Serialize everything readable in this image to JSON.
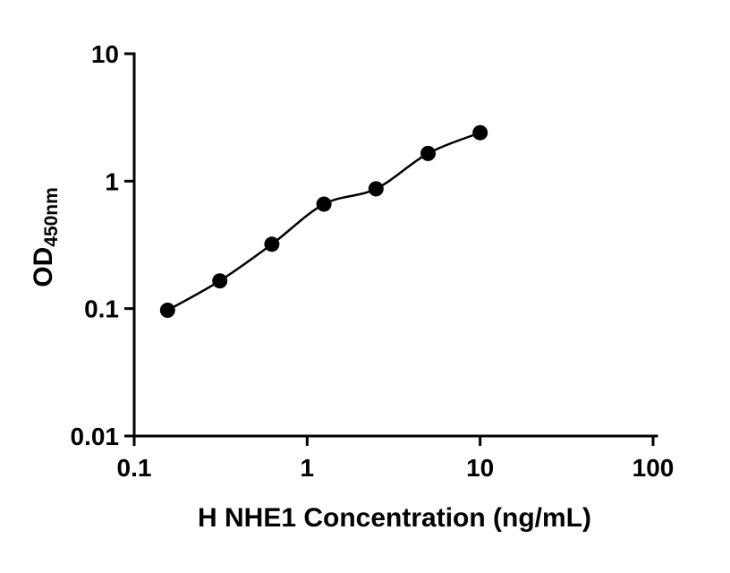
{
  "chart_data": {
    "type": "scatter",
    "title": "",
    "xlabel": "H NHE1 Concentration (ng/mL)",
    "ylabel_main": "OD",
    "ylabel_sub": "450nm",
    "x_scale": "log",
    "y_scale": "log",
    "xlim": [
      0.1,
      100
    ],
    "ylim": [
      0.01,
      10
    ],
    "x": [
      0.156,
      0.3125,
      0.625,
      1.25,
      2.5,
      5,
      10
    ],
    "y": [
      0.097,
      0.165,
      0.32,
      0.66,
      0.87,
      1.65,
      2.4
    ],
    "x_ticks": [
      {
        "value": 0.1,
        "label": "0.1"
      },
      {
        "value": 1,
        "label": "1"
      },
      {
        "value": 10,
        "label": "10"
      },
      {
        "value": 100,
        "label": "100"
      }
    ],
    "y_ticks": [
      {
        "value": 0.01,
        "label": "0.01"
      },
      {
        "value": 0.1,
        "label": "0.1"
      },
      {
        "value": 1,
        "label": "1"
      },
      {
        "value": 10,
        "label": "10"
      }
    ],
    "grid": false,
    "legend": false,
    "curve": "smooth-fit-through-points",
    "marker_color": "#000000",
    "line_color": "#000000",
    "axis_color": "#000000",
    "background": "#ffffff"
  }
}
